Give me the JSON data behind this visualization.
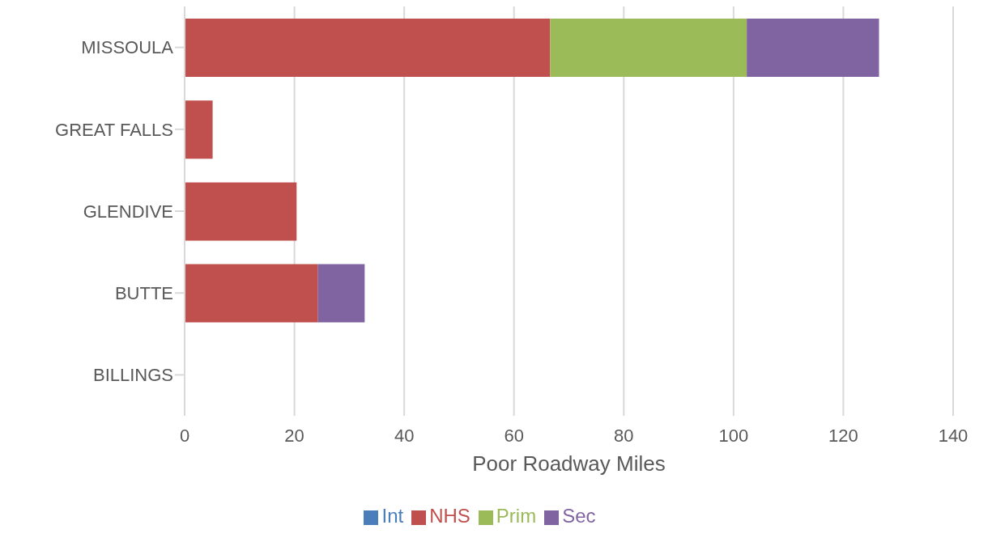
{
  "chart_data": {
    "type": "bar",
    "orientation": "horizontal",
    "stacked": true,
    "xlabel": "Poor Roadway Miles",
    "categories": [
      "MISSOULA",
      "GREAT FALLS",
      "GLENDIVE",
      "BUTTE",
      "BILLINGS"
    ],
    "series": [
      {
        "name": "Int",
        "color": "#4a7ebb",
        "values": [
          0,
          0,
          0,
          0,
          0
        ]
      },
      {
        "name": "NHS",
        "color": "#c0504d",
        "values": [
          66.6,
          5.1,
          20.4,
          24.3,
          0
        ]
      },
      {
        "name": "Prim",
        "color": "#9bbb59",
        "values": [
          35.8,
          0,
          0,
          0,
          0
        ]
      },
      {
        "name": "Sec",
        "color": "#8064a2",
        "values": [
          24.1,
          0,
          0,
          8.5,
          0
        ]
      }
    ],
    "xlim": [
      0,
      140
    ],
    "xticks": [
      0,
      20,
      40,
      60,
      80,
      100,
      120,
      140
    ],
    "grid": "x",
    "legend": "bottom"
  }
}
